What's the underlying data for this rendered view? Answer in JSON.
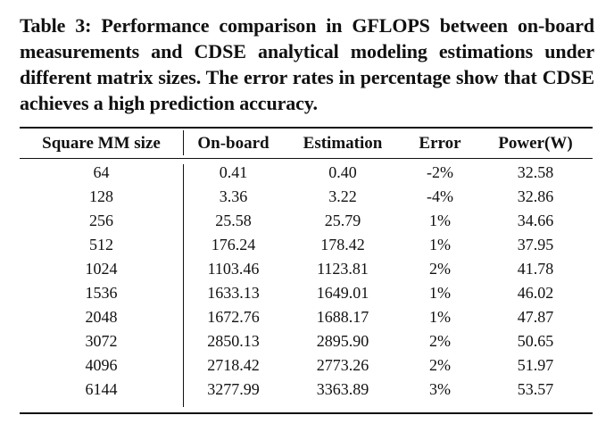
{
  "caption": "Table 3: Performance comparison in GFLOPS between on-board measurements and CDSE analytical modeling estimations under different matrix sizes. The error rates in percentage show that CDSE achieves a high prediction accuracy.",
  "table": {
    "headers": [
      "Square MM size",
      "On-board",
      "Estimation",
      "Error",
      "Power(W)"
    ],
    "rows": [
      [
        "64",
        "0.41",
        "0.40",
        "-2%",
        "32.58"
      ],
      [
        "128",
        "3.36",
        "3.22",
        "-4%",
        "32.86"
      ],
      [
        "256",
        "25.58",
        "25.79",
        "1%",
        "34.66"
      ],
      [
        "512",
        "176.24",
        "178.42",
        "1%",
        "37.95"
      ],
      [
        "1024",
        "1103.46",
        "1123.81",
        "2%",
        "41.78"
      ],
      [
        "1536",
        "1633.13",
        "1649.01",
        "1%",
        "46.02"
      ],
      [
        "2048",
        "1672.76",
        "1688.17",
        "1%",
        "47.87"
      ],
      [
        "3072",
        "2850.13",
        "2895.90",
        "2%",
        "50.65"
      ],
      [
        "4096",
        "2718.42",
        "2773.26",
        "2%",
        "51.97"
      ],
      [
        "6144",
        "3277.99",
        "3363.89",
        "3%",
        "53.57"
      ]
    ]
  }
}
